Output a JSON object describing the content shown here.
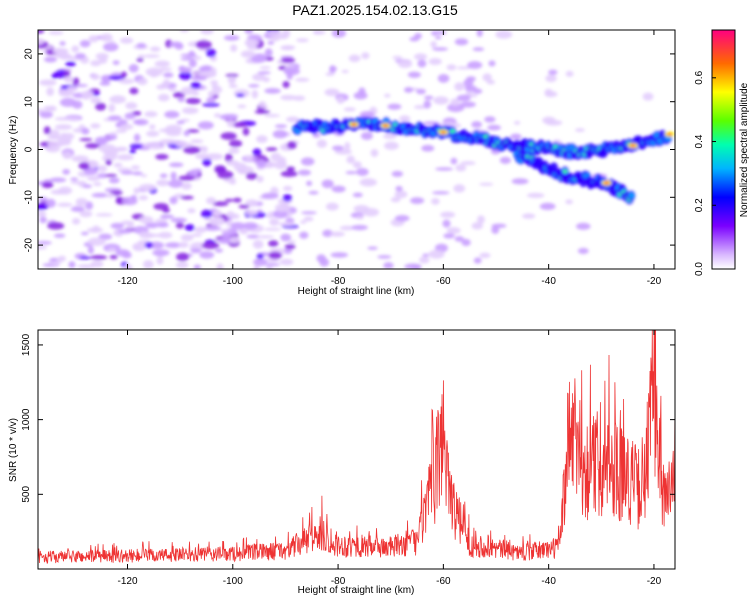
{
  "title": "PAZ1.2025.154.02.13.G15",
  "chart_data": [
    {
      "type": "heatmap",
      "xlabel": "Height of straight line (km)",
      "ylabel": "Frequency (Hz)",
      "xlim": [
        -137,
        -16
      ],
      "ylim": [
        -25,
        25
      ],
      "xticks": [
        -120,
        -100,
        -80,
        -60,
        -40,
        -20
      ],
      "yticks": [
        -20,
        -10,
        0,
        10,
        20
      ],
      "colorbar": {
        "label": "Normalized spectral amplitude",
        "range": [
          0.0,
          0.75
        ],
        "ticks": [
          0.0,
          0.2,
          0.4,
          0.6
        ]
      },
      "ridge": [
        {
          "x": -88,
          "y": 4.5
        },
        {
          "x": -80,
          "y": 5.0
        },
        {
          "x": -72,
          "y": 5.2
        },
        {
          "x": -66,
          "y": 4.5
        },
        {
          "x": -60,
          "y": 3.5
        },
        {
          "x": -54,
          "y": 2.5
        },
        {
          "x": -48,
          "y": 1.0
        },
        {
          "x": -42,
          "y": 0.5
        },
        {
          "x": -36,
          "y": -0.5
        },
        {
          "x": -30,
          "y": 0.0
        },
        {
          "x": -24,
          "y": 1.0
        },
        {
          "x": -20,
          "y": 2.0
        },
        {
          "x": -17,
          "y": 3.0
        }
      ],
      "branch": [
        {
          "x": -46,
          "y": -1.0
        },
        {
          "x": -38,
          "y": -5.0
        },
        {
          "x": -30,
          "y": -7.0
        },
        {
          "x": -24,
          "y": -10.0
        }
      ]
    },
    {
      "type": "line",
      "xlabel": "Height of straight line (km)",
      "ylabel": "SNR (10 * v/v)",
      "xlim": [
        -137,
        -16
      ],
      "ylim": [
        0,
        1600
      ],
      "xticks": [
        -120,
        -100,
        -80,
        -60,
        -40,
        -20
      ],
      "yticks": [
        500,
        1000,
        1500
      ],
      "color": "#ee3333",
      "series_approx": [
        {
          "x": -137,
          "y": 110
        },
        {
          "x": -120,
          "y": 120
        },
        {
          "x": -100,
          "y": 140
        },
        {
          "x": -90,
          "y": 170
        },
        {
          "x": -83,
          "y": 330
        },
        {
          "x": -80,
          "y": 220
        },
        {
          "x": -70,
          "y": 200
        },
        {
          "x": -65,
          "y": 260
        },
        {
          "x": -62,
          "y": 750
        },
        {
          "x": -60,
          "y": 1250
        },
        {
          "x": -58,
          "y": 550
        },
        {
          "x": -55,
          "y": 230
        },
        {
          "x": -45,
          "y": 150
        },
        {
          "x": -38,
          "y": 200
        },
        {
          "x": -36,
          "y": 1300
        },
        {
          "x": -33,
          "y": 900
        },
        {
          "x": -30,
          "y": 1000
        },
        {
          "x": -26,
          "y": 900
        },
        {
          "x": -22,
          "y": 700
        },
        {
          "x": -20,
          "y": 1650
        },
        {
          "x": -18,
          "y": 600
        },
        {
          "x": -16,
          "y": 800
        }
      ]
    }
  ]
}
